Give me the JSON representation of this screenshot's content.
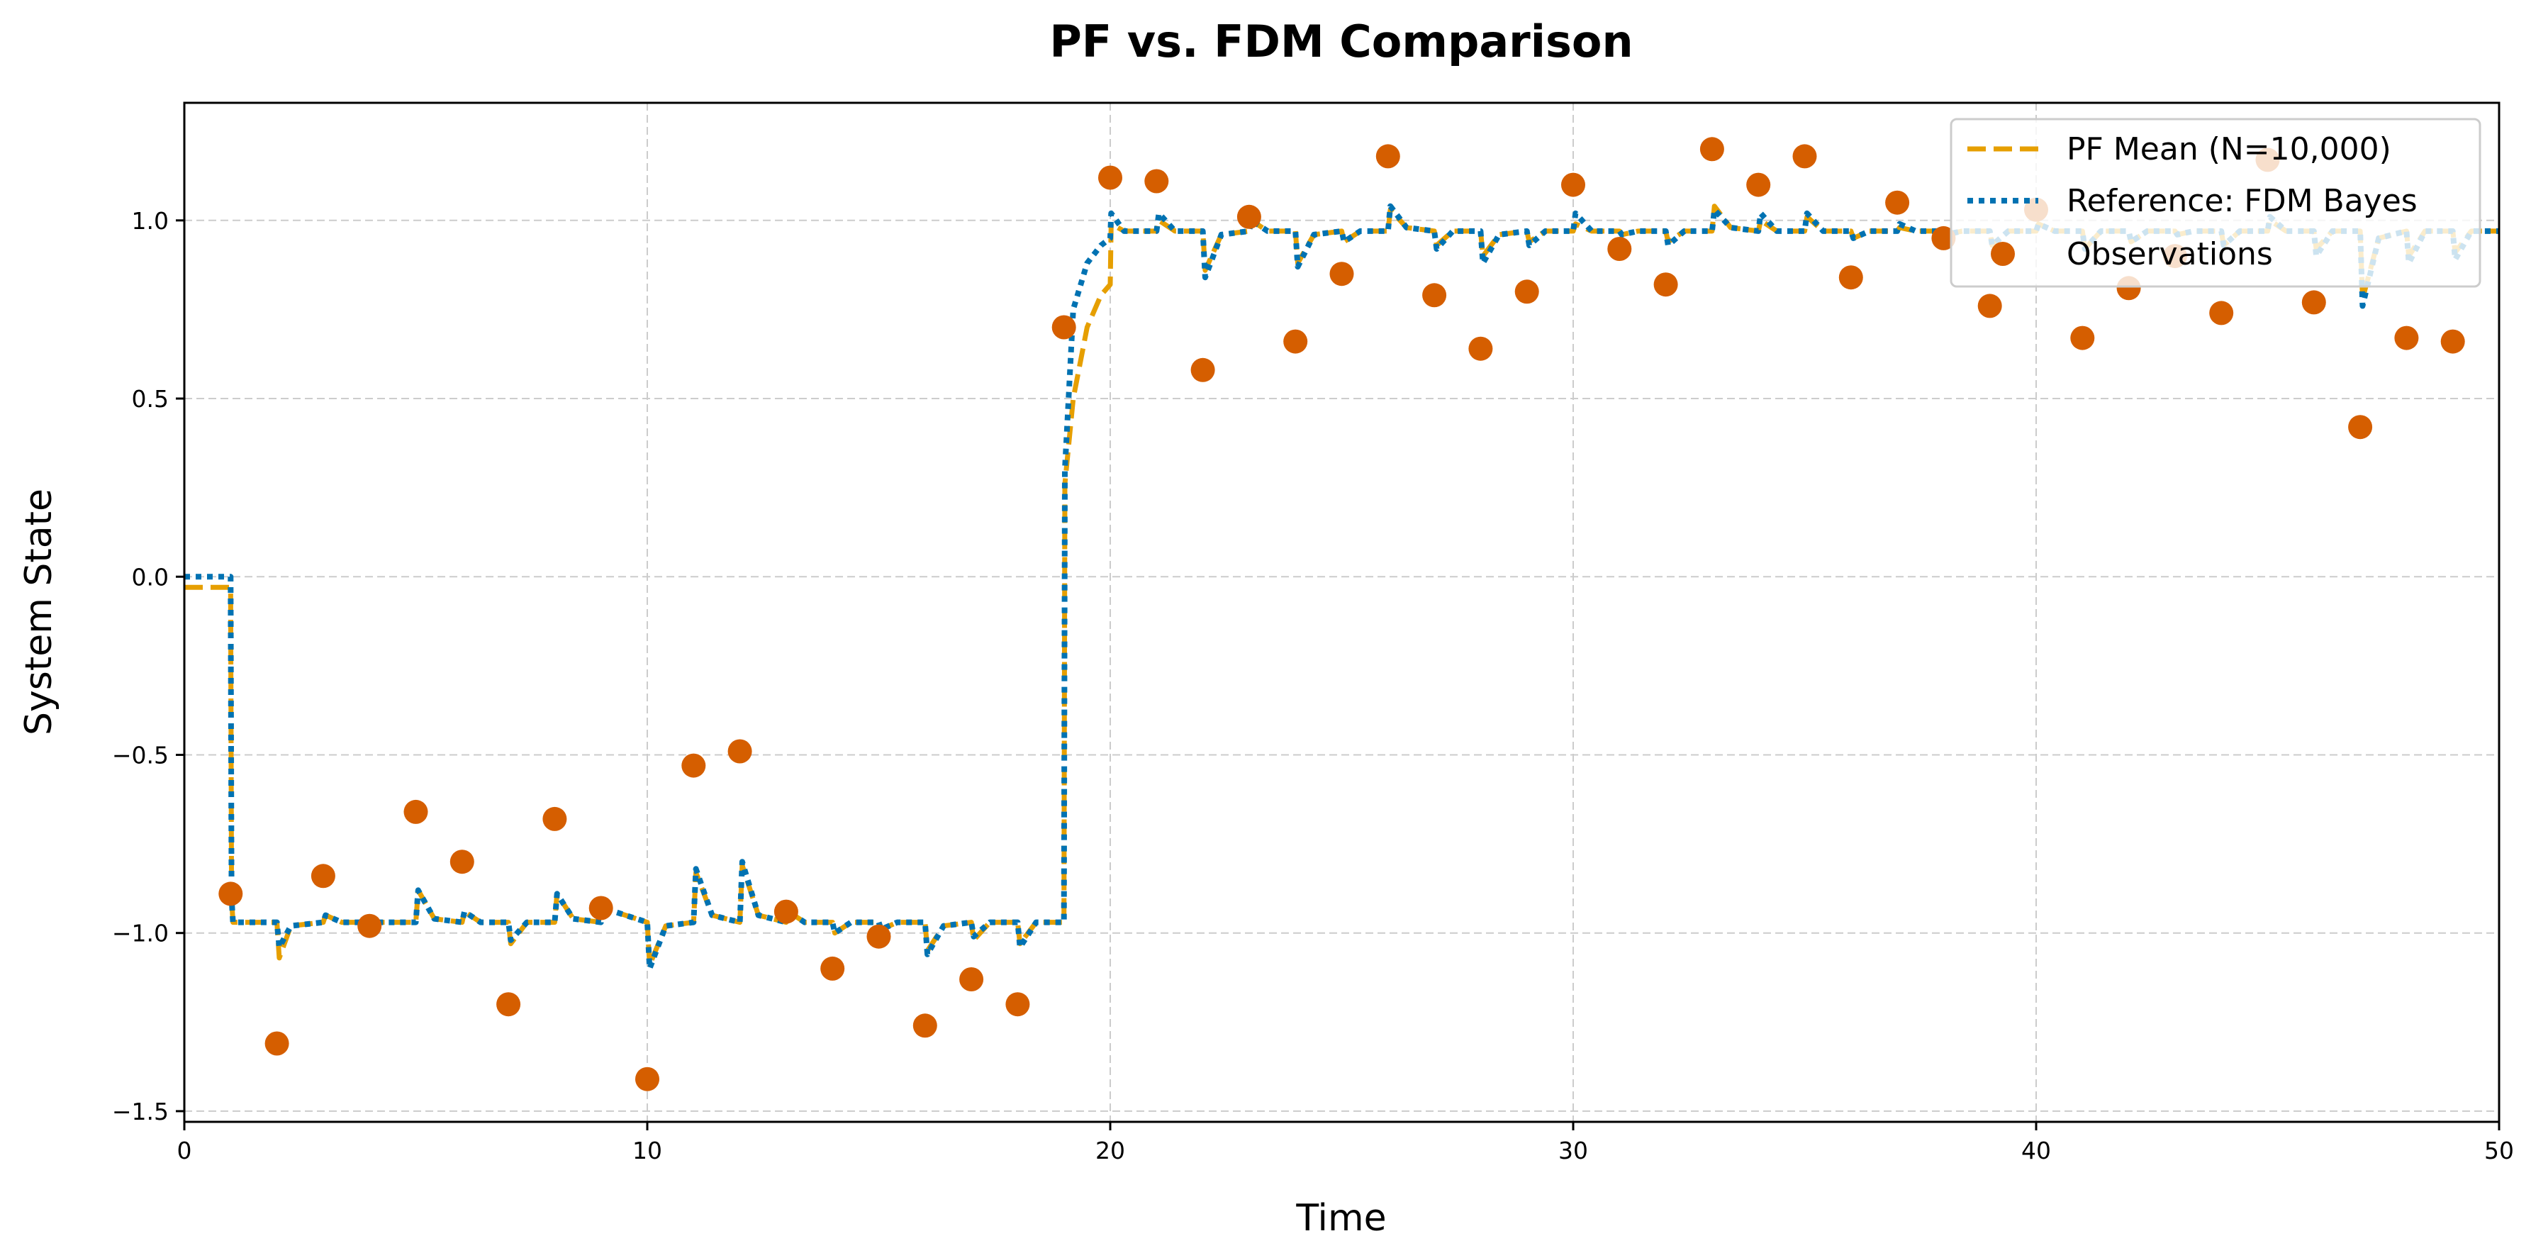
{
  "chart_data": {
    "type": "line",
    "title": "PF vs. FDM Comparison",
    "xlabel": "Time",
    "ylabel": "System State",
    "xlim": [
      0,
      50
    ],
    "ylim": [
      -1.53,
      1.33
    ],
    "xticks": [
      0,
      10,
      20,
      30,
      40,
      50
    ],
    "yticks": [
      -1.5,
      -1.0,
      -0.5,
      0.0,
      0.5,
      1.0
    ],
    "xtick_labels": [
      "0",
      "10",
      "20",
      "30",
      "40",
      "50"
    ],
    "ytick_labels": [
      "−1.5",
      "−1.0",
      "−0.5",
      "0.0",
      "0.5",
      "1.0"
    ],
    "grid": true,
    "legend_position": "upper right",
    "colors": {
      "pf_mean": "#E69F00",
      "reference": "#0072B2",
      "observations": "#D55E00"
    },
    "series": [
      {
        "name": "PF Mean (N=10,000)",
        "style": "dashed",
        "x": [
          0,
          1,
          1.02,
          1.05,
          1.5,
          2,
          2.05,
          2.3,
          3,
          3.05,
          3.4,
          4,
          5,
          5.05,
          5.4,
          6,
          6.05,
          6.4,
          7,
          7.05,
          7.4,
          8,
          8.05,
          8.4,
          9,
          9.05,
          10,
          10.05,
          10.4,
          11,
          11.05,
          11.4,
          12,
          12.05,
          12.4,
          13,
          13.05,
          13.4,
          14,
          14.05,
          14.4,
          15,
          15.05,
          15.4,
          16,
          16.05,
          16.4,
          17,
          17.05,
          17.4,
          18,
          18.05,
          18.4,
          19,
          19.02,
          19.2,
          19.5,
          19.8,
          20,
          20.02,
          20.3,
          21,
          21.05,
          21.4,
          22,
          22.05,
          22.4,
          23,
          23.05,
          23.4,
          24,
          24.05,
          24.4,
          25,
          25.05,
          25.4,
          26,
          26.05,
          26.4,
          27,
          27.05,
          27.4,
          28,
          28.05,
          28.4,
          29,
          29.05,
          29.4,
          30,
          30.05,
          30.4,
          31,
          31.05,
          31.4,
          32,
          32.05,
          32.4,
          33,
          33.05,
          33.4,
          34,
          34.05,
          34.4,
          35,
          35.05,
          35.4,
          36,
          36.05,
          36.4,
          37,
          37.05,
          37.4,
          38,
          38.05,
          38.4,
          39,
          39.05,
          39.4,
          40,
          40.05,
          40.4,
          41,
          41.05,
          41.4,
          42,
          42.05,
          42.4,
          43,
          43.05,
          43.4,
          44,
          44.05,
          44.4,
          45,
          45.05,
          45.4,
          46,
          46.05,
          46.4,
          47,
          47.05,
          47.4,
          48,
          48.05,
          48.4,
          49,
          49.05,
          49.4,
          50
        ],
        "y": [
          -0.03,
          -0.03,
          -0.9,
          -0.97,
          -0.97,
          -0.97,
          -1.07,
          -0.98,
          -0.97,
          -0.95,
          -0.97,
          -0.97,
          -0.97,
          -0.88,
          -0.96,
          -0.97,
          -0.94,
          -0.97,
          -0.97,
          -1.03,
          -0.97,
          -0.97,
          -0.89,
          -0.96,
          -0.97,
          -0.93,
          -0.97,
          -1.09,
          -0.98,
          -0.97,
          -0.83,
          -0.95,
          -0.97,
          -0.81,
          -0.95,
          -0.97,
          -0.94,
          -0.97,
          -0.97,
          -1.0,
          -0.97,
          -0.97,
          -0.99,
          -0.97,
          -0.97,
          -1.05,
          -0.98,
          -0.97,
          -1.02,
          -0.97,
          -0.97,
          -1.03,
          -0.97,
          -0.97,
          0.26,
          0.5,
          0.7,
          0.79,
          0.82,
          0.99,
          0.97,
          0.97,
          1.0,
          0.97,
          0.97,
          0.86,
          0.96,
          0.97,
          1.0,
          0.97,
          0.97,
          0.88,
          0.96,
          0.97,
          0.94,
          0.97,
          0.97,
          1.03,
          0.98,
          0.97,
          0.93,
          0.97,
          0.97,
          0.9,
          0.96,
          0.97,
          0.94,
          0.97,
          0.97,
          0.99,
          0.97,
          0.97,
          0.96,
          0.97,
          0.97,
          0.94,
          0.97,
          0.97,
          1.04,
          0.98,
          0.97,
          1.0,
          0.97,
          0.97,
          1.01,
          0.97,
          0.97,
          0.95,
          0.97,
          0.97,
          0.98,
          0.97,
          0.97,
          0.96,
          0.97,
          0.97,
          0.93,
          0.97,
          0.97,
          0.99,
          0.97,
          0.97,
          0.92,
          0.97,
          0.97,
          0.94,
          0.97,
          0.97,
          0.96,
          0.97,
          0.97,
          0.93,
          0.97,
          0.97,
          1.0,
          0.97,
          0.97,
          0.92,
          0.97,
          0.97,
          0.78,
          0.95,
          0.97,
          0.9,
          0.97,
          0.97,
          0.91,
          0.97,
          0.97
        ]
      },
      {
        "name": "Reference: FDM Bayes",
        "style": "dotted",
        "x": [
          0,
          1,
          1.02,
          1.05,
          1.5,
          2,
          2.05,
          2.3,
          3,
          3.05,
          3.4,
          4,
          5,
          5.05,
          5.4,
          6,
          6.05,
          6.4,
          7,
          7.05,
          7.4,
          8,
          8.05,
          8.4,
          9,
          9.05,
          10,
          10.05,
          10.4,
          11,
          11.05,
          11.4,
          12,
          12.05,
          12.4,
          13,
          13.05,
          13.4,
          14,
          14.05,
          14.4,
          15,
          15.05,
          15.4,
          16,
          16.05,
          16.4,
          17,
          17.05,
          17.4,
          18,
          18.05,
          18.4,
          19,
          19.02,
          19.2,
          19.5,
          19.8,
          20,
          20.02,
          20.3,
          21,
          21.05,
          21.4,
          22,
          22.05,
          22.4,
          23,
          23.05,
          23.4,
          24,
          24.05,
          24.4,
          25,
          25.05,
          25.4,
          26,
          26.05,
          26.4,
          27,
          27.05,
          27.4,
          28,
          28.05,
          28.4,
          29,
          29.05,
          29.4,
          30,
          30.05,
          30.4,
          31,
          31.05,
          31.4,
          32,
          32.05,
          32.4,
          33,
          33.05,
          33.4,
          34,
          34.05,
          34.4,
          35,
          35.05,
          35.4,
          36,
          36.05,
          36.4,
          37,
          37.05,
          37.4,
          38,
          38.05,
          38.4,
          39,
          39.05,
          39.4,
          40,
          40.05,
          40.4,
          41,
          41.05,
          41.4,
          42,
          42.05,
          42.4,
          43,
          43.05,
          43.4,
          44,
          44.05,
          44.4,
          45,
          45.05,
          45.4,
          46,
          46.05,
          46.4,
          47,
          47.05,
          47.4,
          48,
          48.05,
          48.4,
          49,
          49.05,
          49.4,
          50
        ],
        "y": [
          0.0,
          0.0,
          -0.9,
          -0.97,
          -0.97,
          -0.97,
          -1.04,
          -0.98,
          -0.97,
          -0.95,
          -0.97,
          -0.97,
          -0.97,
          -0.88,
          -0.96,
          -0.97,
          -0.94,
          -0.97,
          -0.97,
          -1.02,
          -0.97,
          -0.97,
          -0.89,
          -0.96,
          -0.97,
          -0.93,
          -0.97,
          -1.1,
          -0.98,
          -0.97,
          -0.82,
          -0.95,
          -0.97,
          -0.8,
          -0.95,
          -0.97,
          -0.94,
          -0.97,
          -0.97,
          -1.0,
          -0.97,
          -0.97,
          -0.99,
          -0.97,
          -0.97,
          -1.06,
          -0.98,
          -0.97,
          -1.01,
          -0.97,
          -0.97,
          -1.04,
          -0.97,
          -0.97,
          0.3,
          0.75,
          0.88,
          0.93,
          0.95,
          1.02,
          0.97,
          0.97,
          1.02,
          0.97,
          0.97,
          0.84,
          0.96,
          0.97,
          1.0,
          0.97,
          0.97,
          0.87,
          0.96,
          0.97,
          0.94,
          0.97,
          0.97,
          1.04,
          0.98,
          0.97,
          0.92,
          0.97,
          0.97,
          0.88,
          0.96,
          0.97,
          0.93,
          0.97,
          0.97,
          1.02,
          0.97,
          0.97,
          0.96,
          0.97,
          0.97,
          0.93,
          0.97,
          0.97,
          1.03,
          0.98,
          0.97,
          1.02,
          0.97,
          0.97,
          1.02,
          0.97,
          0.97,
          0.95,
          0.97,
          0.97,
          0.99,
          0.97,
          0.97,
          0.96,
          0.97,
          0.97,
          0.93,
          0.97,
          0.97,
          0.99,
          0.97,
          0.97,
          0.92,
          0.97,
          0.97,
          0.94,
          0.97,
          0.97,
          0.96,
          0.97,
          0.97,
          0.93,
          0.97,
          0.97,
          1.01,
          0.97,
          0.97,
          0.9,
          0.97,
          0.97,
          0.76,
          0.95,
          0.97,
          0.88,
          0.97,
          0.97,
          0.89,
          0.97,
          0.97
        ]
      },
      {
        "name": "Observations",
        "style": "markers",
        "x": [
          1,
          2,
          3,
          4,
          5,
          6,
          7,
          8,
          9,
          10,
          11,
          12,
          13,
          14,
          15,
          16,
          17,
          18,
          19,
          20,
          21,
          22,
          23,
          24,
          25,
          26,
          27,
          28,
          29,
          30,
          31,
          32,
          33,
          34,
          35,
          36,
          37,
          38,
          39,
          40,
          41,
          42,
          43,
          44,
          45,
          46,
          47,
          48,
          49
        ],
        "y": [
          -0.89,
          -1.31,
          -0.84,
          -0.98,
          -0.66,
          -0.8,
          -1.2,
          -0.68,
          -0.93,
          -1.41,
          -0.53,
          -0.49,
          -0.94,
          -1.1,
          -1.01,
          -1.26,
          -1.13,
          -1.2,
          0.7,
          1.12,
          1.11,
          0.58,
          1.01,
          0.66,
          0.85,
          1.18,
          0.79,
          0.64,
          0.8,
          1.1,
          0.92,
          0.82,
          1.2,
          1.1,
          1.18,
          0.84,
          1.05,
          0.95,
          0.76,
          1.03,
          0.67,
          0.81,
          0.9,
          0.74,
          1.17,
          0.77,
          0.42,
          0.67,
          0.66
        ]
      }
    ]
  }
}
